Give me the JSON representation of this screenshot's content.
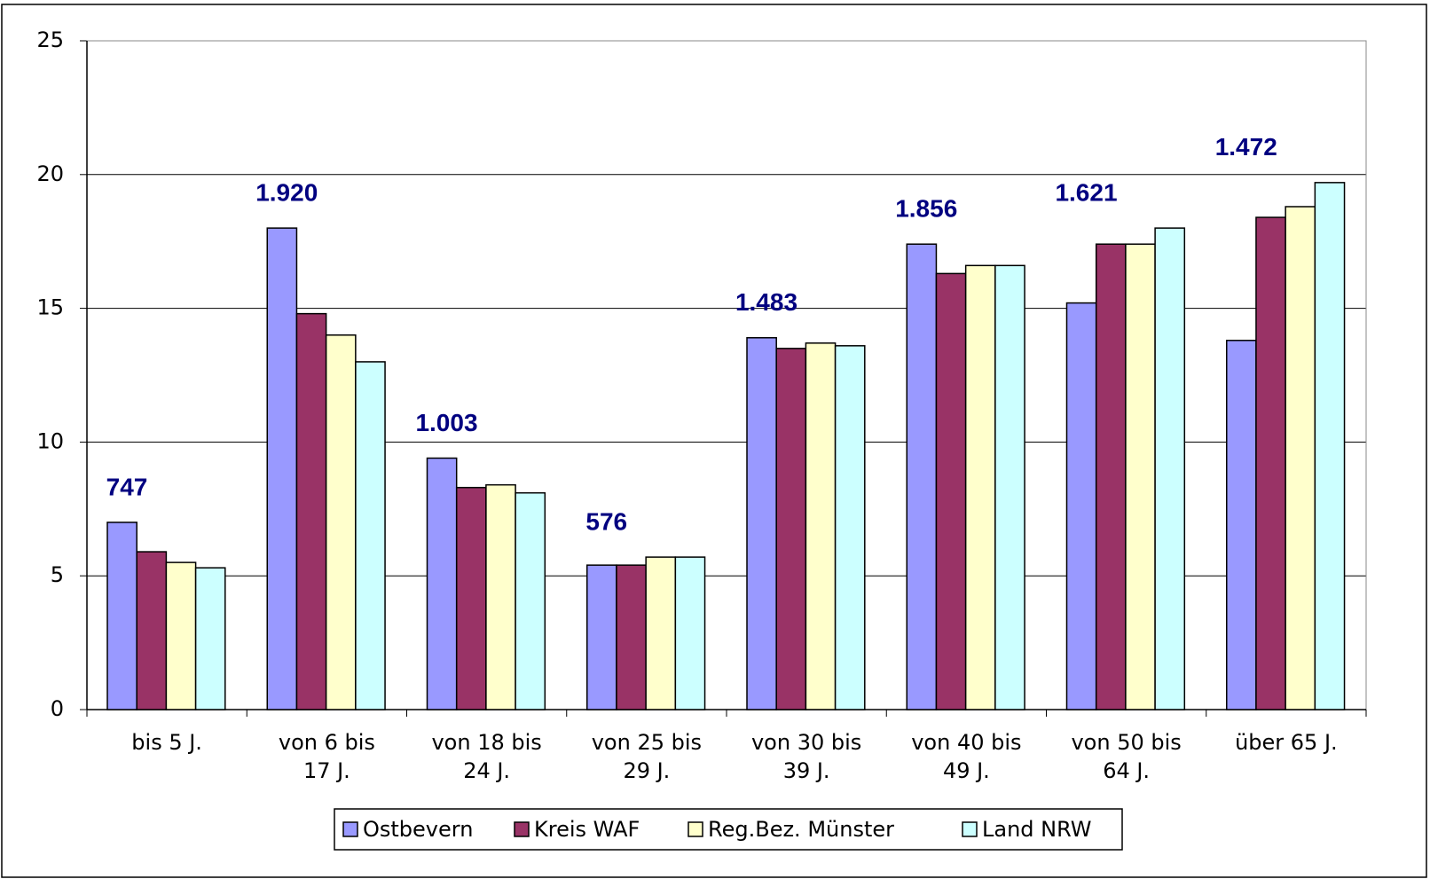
{
  "chart_data": {
    "type": "bar",
    "categories": [
      [
        "bis 5 J."
      ],
      [
        "von 6 bis",
        "17 J."
      ],
      [
        "von 18 bis",
        "24 J."
      ],
      [
        "von 25 bis",
        "29 J."
      ],
      [
        "von 30 bis",
        "39 J."
      ],
      [
        "von 40 bis",
        "49 J."
      ],
      [
        "von 50 bis",
        "64 J."
      ],
      [
        "über 65 J."
      ]
    ],
    "annotations": [
      "747",
      "1.920",
      "1.003",
      "576",
      "1.483",
      "1.856",
      "1.621",
      "1.472"
    ],
    "series": [
      {
        "name": "Ostbevern",
        "color": "#9999ff",
        "values": [
          7.0,
          18.0,
          9.4,
          5.4,
          13.9,
          17.4,
          15.2,
          13.8
        ]
      },
      {
        "name": "Kreis WAF",
        "color": "#993366",
        "values": [
          5.9,
          14.8,
          8.3,
          5.4,
          13.5,
          16.3,
          17.4,
          18.4
        ]
      },
      {
        "name": "Reg.Bez. Münster",
        "color": "#ffffcc",
        "values": [
          5.5,
          14.0,
          8.4,
          5.7,
          13.7,
          16.6,
          17.4,
          18.8
        ]
      },
      {
        "name": "Land NRW",
        "color": "#ccffff",
        "values": [
          5.3,
          13.0,
          8.1,
          5.7,
          13.6,
          16.6,
          18.0,
          19.7
        ]
      }
    ],
    "ylim": [
      0,
      25
    ],
    "yticks": [
      0,
      5,
      10,
      15,
      20,
      25
    ],
    "grid": true,
    "legend": "bottom"
  }
}
